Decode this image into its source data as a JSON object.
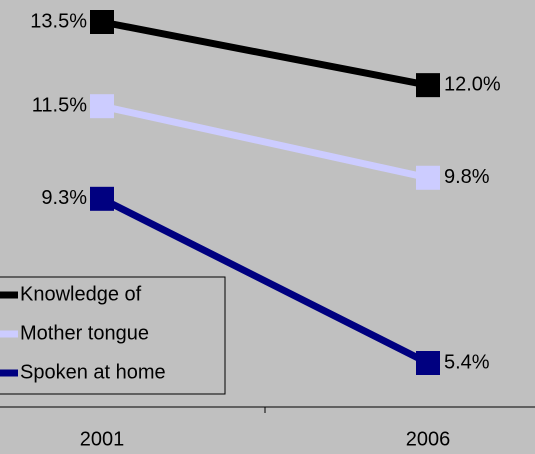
{
  "chart_data": {
    "type": "line",
    "categories": [
      "2001",
      "2006"
    ],
    "series": [
      {
        "name": "Knowledge of",
        "color": "#000000",
        "values": [
          13.5,
          12.0
        ],
        "value_labels": [
          "13.5%",
          "12.0%"
        ]
      },
      {
        "name": "Mother tongue",
        "color": "#ccccff",
        "values": [
          11.5,
          9.8
        ],
        "value_labels": [
          "11.5%",
          "9.8%"
        ]
      },
      {
        "name": "Spoken at home",
        "color": "#000080",
        "values": [
          9.3,
          5.4
        ],
        "value_labels": [
          "9.3%",
          "5.4%"
        ]
      }
    ],
    "legend": "lower left"
  }
}
